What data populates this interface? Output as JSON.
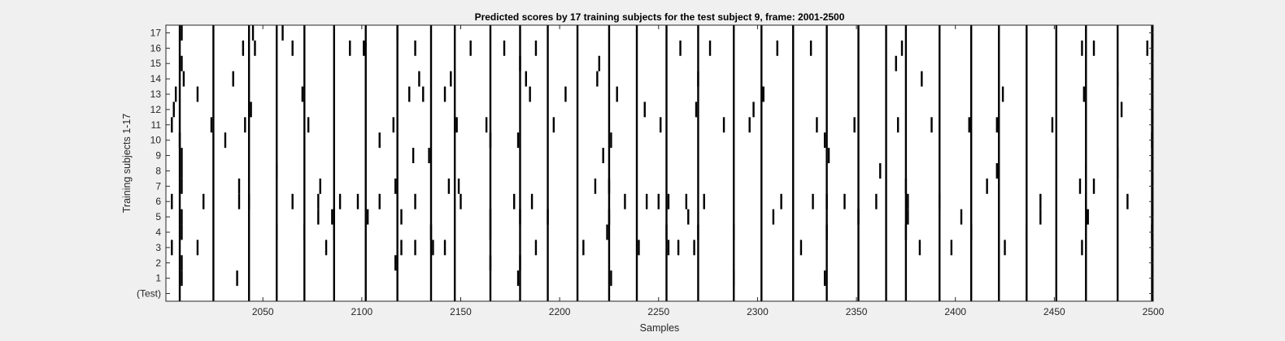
{
  "chart_data": {
    "type": "heatmap",
    "title": "Predicted scores by 17 training subjects for the test subject 9, frame: 2001-2500",
    "xlabel": "Samples",
    "ylabel": "Training subjects 1-17",
    "xlim": [
      2001,
      2500
    ],
    "xticks": [
      2050,
      2100,
      2150,
      2200,
      2250,
      2300,
      2350,
      2400,
      2450,
      2500
    ],
    "row_labels": [
      "(Test)",
      "1",
      "2",
      "3",
      "4",
      "5",
      "6",
      "7",
      "8",
      "9",
      "10",
      "11",
      "12",
      "13",
      "14",
      "15",
      "16",
      "17"
    ],
    "grid": false,
    "colors": {
      "background": "#ffffff",
      "mark": "#000000",
      "figure": "#f0f0f0",
      "axes": "#262626"
    },
    "common_marks": [
      2008,
      2025,
      2043,
      2057,
      2071,
      2086,
      2102,
      2118,
      2135,
      2147,
      2165,
      2180,
      2194,
      2209,
      2225,
      2239,
      2254,
      2270,
      2288,
      2302,
      2318,
      2335,
      2351,
      2365,
      2375,
      2392,
      2408,
      2422,
      2436,
      2451,
      2466,
      2482,
      2500
    ],
    "rows": [
      {
        "label": "(Test)",
        "marks": []
      },
      {
        "label": "1",
        "marks": [
          2009,
          2037,
          2179,
          2226,
          2288,
          2334
        ]
      },
      {
        "label": "2",
        "marks": [
          2009,
          2117,
          2165,
          2180
        ]
      },
      {
        "label": "3",
        "marks": [
          2004,
          2017,
          2082,
          2120,
          2127,
          2136,
          2142,
          2188,
          2212,
          2240,
          2255,
          2260,
          2268,
          2322,
          2382,
          2398,
          2425,
          2464
        ]
      },
      {
        "label": "4",
        "marks": [
          2009,
          2057,
          2071,
          2086,
          2135,
          2165,
          2224,
          2254,
          2270,
          2288,
          2335,
          2375,
          2408,
          2436,
          2500
        ]
      },
      {
        "label": "5",
        "marks": [
          2009,
          2078,
          2085,
          2103,
          2120,
          2165,
          2180,
          2194,
          2225,
          2265,
          2308,
          2351,
          2376,
          2403,
          2443,
          2467
        ]
      },
      {
        "label": "6",
        "marks": [
          2004,
          2020,
          2038,
          2043,
          2065,
          2078,
          2089,
          2098,
          2109,
          2127,
          2150,
          2177,
          2186,
          2233,
          2244,
          2250,
          2255,
          2264,
          2273,
          2312,
          2328,
          2335,
          2344,
          2360,
          2376,
          2392,
          2443,
          2466,
          2487
        ]
      },
      {
        "label": "7",
        "marks": [
          2009,
          2038,
          2079,
          2117,
          2144,
          2149,
          2218,
          2225,
          2375,
          2416,
          2463,
          2470
        ]
      },
      {
        "label": "8",
        "marks": [
          2009,
          2057,
          2362,
          2421,
          2466,
          2482
        ]
      },
      {
        "label": "9",
        "marks": [
          2009,
          2126,
          2134,
          2222,
          2336,
          2482
        ]
      },
      {
        "label": "10",
        "marks": [
          2008,
          2031,
          2109,
          2165,
          2179,
          2226,
          2334,
          2500
        ]
      },
      {
        "label": "11",
        "marks": [
          2004,
          2024,
          2041,
          2073,
          2116,
          2148,
          2163,
          2197,
          2251,
          2283,
          2296,
          2330,
          2349,
          2371,
          2388,
          2407,
          2421,
          2449
        ]
      },
      {
        "label": "12",
        "marks": [
          2005,
          2044,
          2243,
          2269,
          2298,
          2484
        ]
      },
      {
        "label": "13",
        "marks": [
          2006,
          2017,
          2070,
          2124,
          2131,
          2142,
          2185,
          2203,
          2229,
          2303,
          2424,
          2465
        ]
      },
      {
        "label": "14",
        "marks": [
          2010,
          2035,
          2129,
          2145,
          2183,
          2219,
          2270,
          2383,
          2482
        ]
      },
      {
        "label": "15",
        "marks": [
          2009,
          2180,
          2220,
          2370
        ]
      },
      {
        "label": "16",
        "marks": [
          2040,
          2046,
          2065,
          2094,
          2101,
          2127,
          2155,
          2172,
          2188,
          2261,
          2276,
          2310,
          2327,
          2373,
          2464,
          2470,
          2497
        ]
      },
      {
        "label": "17",
        "marks": [
          2009,
          2045,
          2060,
          2118
        ]
      }
    ]
  }
}
